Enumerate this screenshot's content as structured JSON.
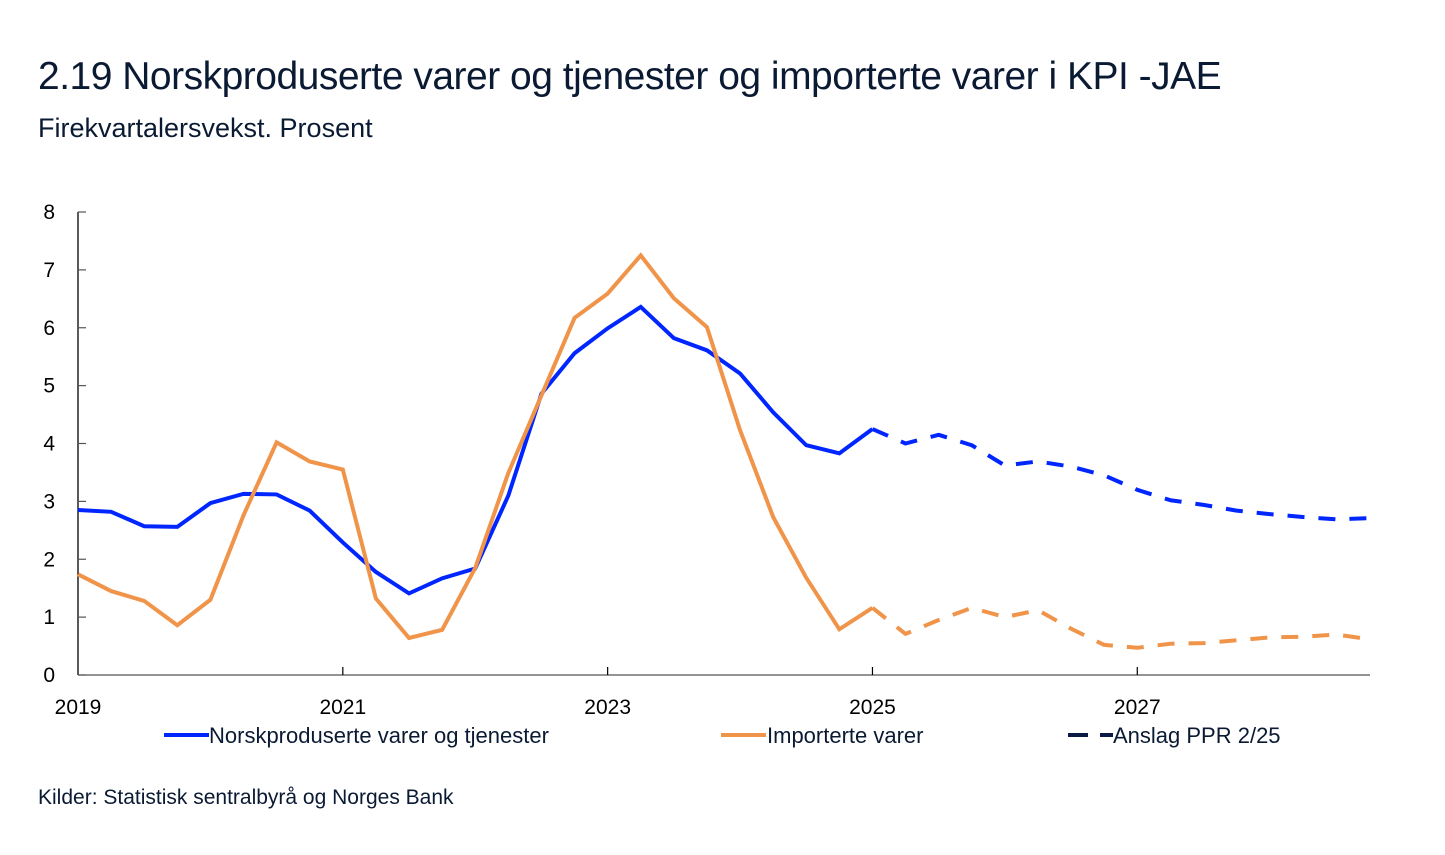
{
  "header": {
    "title": "2.19 Norskproduserte varer og tjenester og importerte varer i KPI -JAE",
    "subtitle": "Firekvartalersvekst. Prosent"
  },
  "footer": {
    "source": "Kilder: Statistisk sentralbyrå og Norges Bank"
  },
  "colors": {
    "norsk": "#0026ff",
    "import": "#f0944a",
    "forecast_legend": "#0b1a44",
    "axis": "#000000",
    "text": "#0b1a33"
  },
  "chart_data": {
    "type": "line",
    "title": "2.19 Norskproduserte varer og tjenester og importerte varer i KPI -JAE",
    "subtitle": "Firekvartalersvekst. Prosent",
    "xlabel": "",
    "ylabel": "",
    "ylim": [
      0,
      8
    ],
    "yticks": [
      0,
      1,
      2,
      3,
      4,
      5,
      6,
      7,
      8
    ],
    "xticks": [
      "2019",
      "2021",
      "2023",
      "2025",
      "2027"
    ],
    "xrange": [
      "2019Q1",
      "2028Q4"
    ],
    "forecast_start": "2025Q1",
    "grid": false,
    "legend_position": "bottom",
    "x": [
      "2019Q1",
      "2019Q2",
      "2019Q3",
      "2019Q4",
      "2020Q1",
      "2020Q2",
      "2020Q3",
      "2020Q4",
      "2021Q1",
      "2021Q2",
      "2021Q3",
      "2021Q4",
      "2022Q1",
      "2022Q2",
      "2022Q3",
      "2022Q4",
      "2023Q1",
      "2023Q2",
      "2023Q3",
      "2023Q4",
      "2024Q1",
      "2024Q2",
      "2024Q3",
      "2024Q4",
      "2025Q1",
      "2025Q2",
      "2025Q3",
      "2025Q4",
      "2026Q1",
      "2026Q2",
      "2026Q3",
      "2026Q4",
      "2027Q1",
      "2027Q2",
      "2027Q3",
      "2027Q4",
      "2028Q1",
      "2028Q2",
      "2028Q3",
      "2028Q4"
    ],
    "series": [
      {
        "name": "Norskproduserte varer og tjenester",
        "color": "#0026ff",
        "values": [
          2.85,
          2.82,
          2.57,
          2.56,
          2.97,
          3.13,
          3.12,
          2.84,
          2.29,
          1.78,
          1.41,
          1.67,
          1.84,
          3.1,
          4.86,
          5.56,
          5.99,
          6.36,
          5.82,
          5.61,
          5.21,
          4.54,
          3.97,
          3.83,
          4.25,
          4.0,
          4.15,
          3.97,
          3.62,
          3.69,
          3.6,
          3.45,
          3.2,
          3.02,
          2.94,
          2.84,
          2.78,
          2.73,
          2.69,
          2.71
        ]
      },
      {
        "name": "Importerte varer",
        "color": "#f0944a",
        "values": [
          1.74,
          1.45,
          1.28,
          0.86,
          1.3,
          2.76,
          4.02,
          3.69,
          3.55,
          1.32,
          0.64,
          0.78,
          1.85,
          3.49,
          4.83,
          6.17,
          6.59,
          7.25,
          6.51,
          6.01,
          4.23,
          2.73,
          1.68,
          0.79,
          1.16,
          0.71,
          0.95,
          1.16,
          1.0,
          1.12,
          0.8,
          0.52,
          0.47,
          0.54,
          0.55,
          0.6,
          0.65,
          0.66,
          0.7,
          0.62
        ]
      }
    ],
    "legend": [
      {
        "label": "Norskproduserte varer og tjenester",
        "style": "solid",
        "color": "#0026ff"
      },
      {
        "label": "Importerte varer",
        "style": "solid",
        "color": "#f0944a"
      },
      {
        "label": "Anslag PPR 2/25",
        "style": "dashed",
        "color": "#0b1a44"
      }
    ]
  }
}
